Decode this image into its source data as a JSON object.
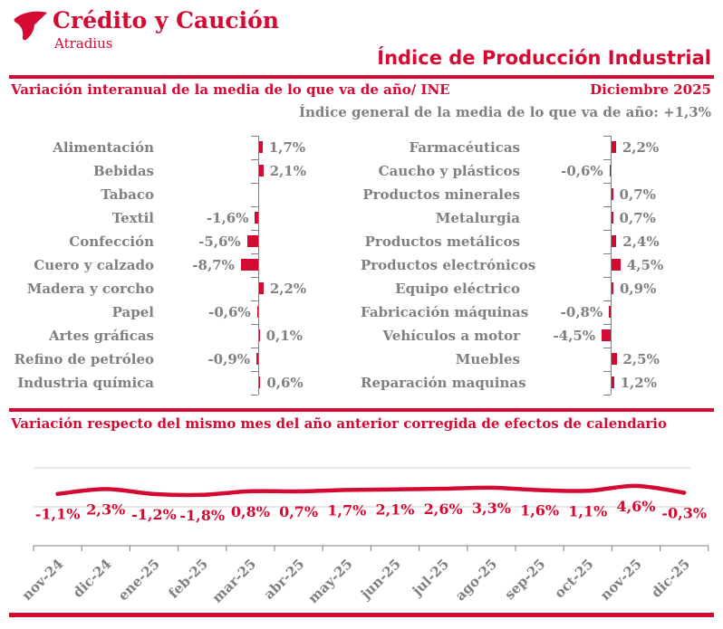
{
  "header": {
    "logo_title": "Crédito y Caución",
    "logo_subtitle": "Atradius",
    "page_title": "Índice de Producción Industrial"
  },
  "section1": {
    "subtitle": "Variación interanual de la media de lo que va de año/ INE",
    "date": "Diciembre 2025",
    "general_index": "Índice general de la media de lo que va de año:  +1,3%"
  },
  "section2": {
    "subtitle": "Variación respecto del mismo mes del año anterior corregida de efectos de calendario"
  },
  "colors": {
    "brand_red": "#d40a32",
    "text_gray": "#808080",
    "gridline_gray": "#d9d9d9",
    "axis_gray": "#808080"
  },
  "chart_data": [
    {
      "type": "bar",
      "orientation": "horizontal",
      "title": "Variación interanual de la media de lo que va de año/ INE — columna izquierda",
      "unit": "%",
      "categories": [
        "Alimentación",
        "Bebidas",
        "Tabaco",
        "Textil",
        "Confección",
        "Cuero y calzado",
        "Madera y corcho",
        "Papel",
        "Artes gráficas",
        "Refino de petróleo",
        "Industria química"
      ],
      "values": [
        1.7,
        2.1,
        null,
        -1.6,
        -5.6,
        -8.7,
        2.2,
        -0.6,
        0.1,
        -0.9,
        0.6
      ],
      "labels": [
        "1,7%",
        "2,1%",
        null,
        "-1,6%",
        "-5,6%",
        "-8,7%",
        "2,2%",
        "-0,6%",
        "0,1%",
        "-0,9%",
        "0,6%"
      ]
    },
    {
      "type": "bar",
      "orientation": "horizontal",
      "title": "Variación interanual de la media de lo que va de año/ INE — columna derecha",
      "unit": "%",
      "categories": [
        "Farmacéuticas",
        "Caucho y plásticos",
        "Productos minerales",
        "Metalurgia",
        "Productos metálicos",
        "Productos electrónicos",
        "Equipo eléctrico",
        "Fabricación máquinas",
        "Vehículos a motor",
        "Muebles",
        "Reparación maquinas"
      ],
      "values": [
        2.2,
        -0.6,
        0.7,
        0.7,
        2.4,
        4.5,
        0.9,
        -0.8,
        -4.5,
        2.5,
        1.2
      ],
      "labels": [
        "2,2%",
        "-0,6%",
        "0,7%",
        "0,7%",
        "2,4%",
        "4,5%",
        "0,9%",
        "-0,8%",
        "-4,5%",
        "2,5%",
        "1,2%"
      ]
    },
    {
      "type": "line",
      "title": "Variación respecto del mismo mes del año anterior corregida de efectos de calendario",
      "unit": "%",
      "smoothed": true,
      "grid": true,
      "categories": [
        "nov-24",
        "dic-24",
        "ene-25",
        "feb-25",
        "mar-25",
        "abr-25",
        "may-25",
        "jun-25",
        "jul-25",
        "ago-25",
        "sep-25",
        "oct-25",
        "nov-25",
        "dic-25"
      ],
      "values": [
        -1.1,
        2.3,
        -1.2,
        -1.8,
        0.8,
        0.7,
        1.7,
        2.1,
        2.6,
        3.3,
        1.6,
        1.1,
        4.6,
        -0.3
      ],
      "labels": [
        "-1,1%",
        "2,3%",
        "-1,2%",
        "-1,8%",
        "0,8%",
        "0,7%",
        "1,7%",
        "2,1%",
        "2,6%",
        "3,3%",
        "1,6%",
        "1,1%",
        "4,6%",
        "-0,3%"
      ]
    }
  ]
}
